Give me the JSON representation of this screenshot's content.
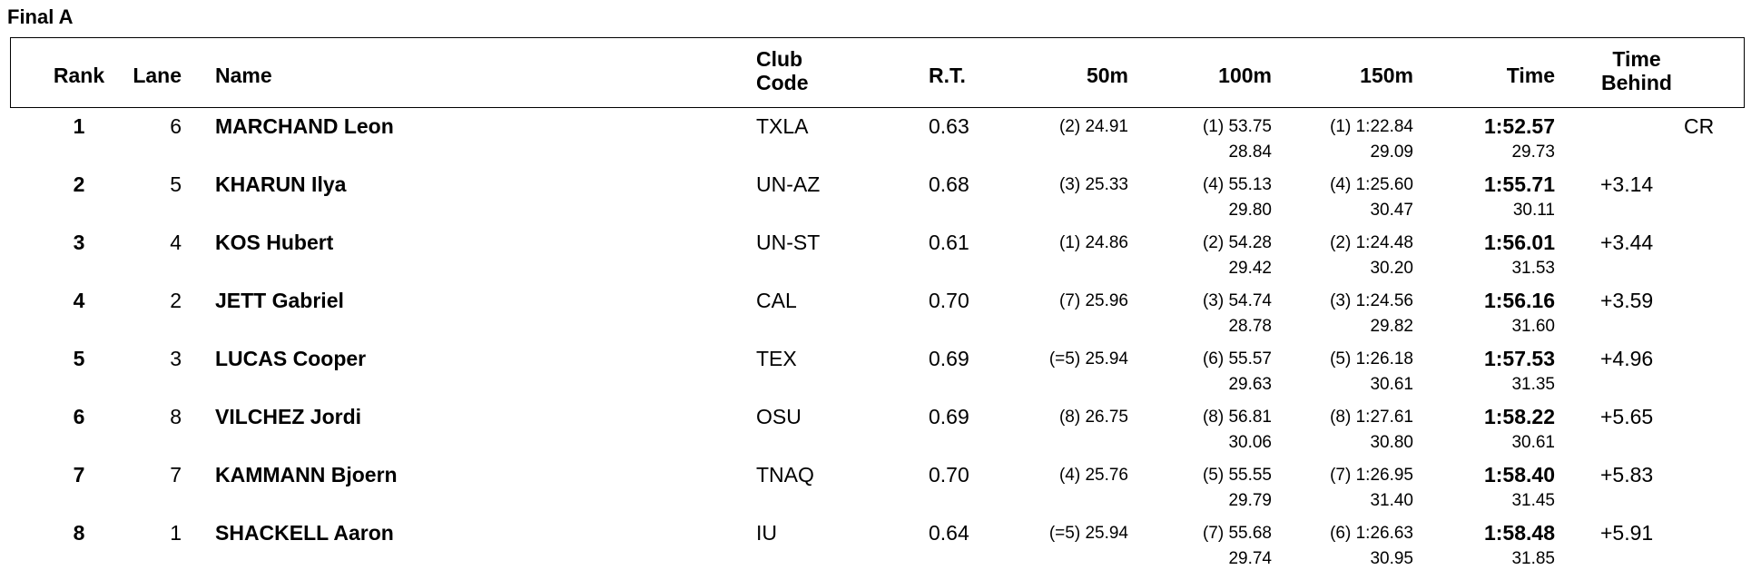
{
  "heading": "Final A",
  "columns": {
    "rank": "Rank",
    "lane": "Lane",
    "name": "Name",
    "club": "Club Code",
    "rt": "R.T.",
    "s50": "50m",
    "s100": "100m",
    "s150": "150m",
    "time": "Time",
    "behind": "Time Behind"
  },
  "rows": [
    {
      "rank": "1",
      "lane": "6",
      "name": "MARCHAND Leon",
      "club": "TXLA",
      "rt": "0.63",
      "s50": "(2) 24.91",
      "s100": "(1) 53.75",
      "s150": "(1) 1:22.84",
      "time": "1:52.57",
      "remark": "CR",
      "split100": "28.84",
      "split150": "29.09",
      "splitTime": "29.73"
    },
    {
      "rank": "2",
      "lane": "5",
      "name": "KHARUN Ilya",
      "club": "UN-AZ",
      "rt": "0.68",
      "s50": "(3) 25.33",
      "s100": "(4) 55.13",
      "s150": "(4) 1:25.60",
      "time": "1:55.71",
      "behind": "+3.14",
      "split100": "29.80",
      "split150": "30.47",
      "splitTime": "30.11"
    },
    {
      "rank": "3",
      "lane": "4",
      "name": "KOS Hubert",
      "club": "UN-ST",
      "rt": "0.61",
      "s50": "(1) 24.86",
      "s100": "(2) 54.28",
      "s150": "(2) 1:24.48",
      "time": "1:56.01",
      "behind": "+3.44",
      "split100": "29.42",
      "split150": "30.20",
      "splitTime": "31.53"
    },
    {
      "rank": "4",
      "lane": "2",
      "name": "JETT Gabriel",
      "club": "CAL",
      "rt": "0.70",
      "s50": "(7) 25.96",
      "s100": "(3) 54.74",
      "s150": "(3) 1:24.56",
      "time": "1:56.16",
      "behind": "+3.59",
      "split100": "28.78",
      "split150": "29.82",
      "splitTime": "31.60"
    },
    {
      "rank": "5",
      "lane": "3",
      "name": "LUCAS Cooper",
      "club": "TEX",
      "rt": "0.69",
      "s50": "(=5) 25.94",
      "s100": "(6) 55.57",
      "s150": "(5) 1:26.18",
      "time": "1:57.53",
      "behind": "+4.96",
      "split100": "29.63",
      "split150": "30.61",
      "splitTime": "31.35"
    },
    {
      "rank": "6",
      "lane": "8",
      "name": "VILCHEZ Jordi",
      "club": "OSU",
      "rt": "0.69",
      "s50": "(8) 26.75",
      "s100": "(8) 56.81",
      "s150": "(8) 1:27.61",
      "time": "1:58.22",
      "behind": "+5.65",
      "split100": "30.06",
      "split150": "30.80",
      "splitTime": "30.61"
    },
    {
      "rank": "7",
      "lane": "7",
      "name": "KAMMANN Bjoern",
      "club": "TNAQ",
      "rt": "0.70",
      "s50": "(4) 25.76",
      "s100": "(5) 55.55",
      "s150": "(7) 1:26.95",
      "time": "1:58.40",
      "behind": "+5.83",
      "split100": "29.79",
      "split150": "31.40",
      "splitTime": "31.45"
    },
    {
      "rank": "8",
      "lane": "1",
      "name": "SHACKELL Aaron",
      "club": "IU",
      "rt": "0.64",
      "s50": "(=5) 25.94",
      "s100": "(7) 55.68",
      "s150": "(6) 1:26.63",
      "time": "1:58.48",
      "behind": "+5.91",
      "split100": "29.74",
      "split150": "30.95",
      "splitTime": "31.85"
    }
  ]
}
